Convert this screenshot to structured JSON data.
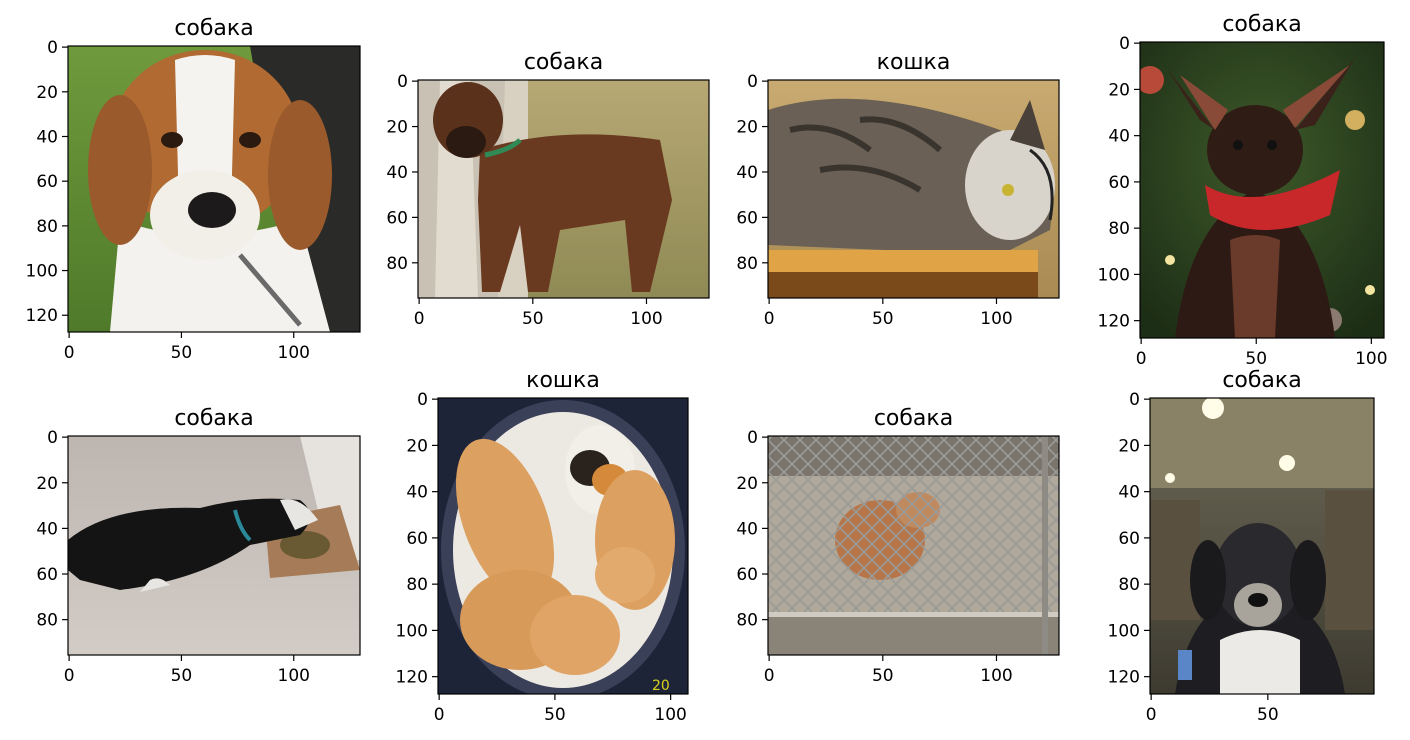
{
  "chart_data": [
    {
      "type": "image",
      "title": "собака",
      "image": "beagle",
      "width": 130,
      "height": 128,
      "xticks": [
        0,
        50,
        100
      ],
      "yticks": [
        0,
        20,
        40,
        60,
        80,
        100,
        120
      ]
    },
    {
      "type": "image",
      "title": "собака",
      "image": "boxer",
      "width": 128,
      "height": 96,
      "xticks": [
        0,
        50,
        100
      ],
      "yticks": [
        0,
        20,
        40,
        60,
        80
      ]
    },
    {
      "type": "image",
      "title": "кошка",
      "image": "tabby-cat",
      "width": 128,
      "height": 96,
      "xticks": [
        0,
        50,
        100
      ],
      "yticks": [
        0,
        20,
        40,
        60,
        80
      ]
    },
    {
      "type": "image",
      "title": "собака",
      "image": "chihuahua",
      "width": 106,
      "height": 128,
      "xticks": [
        0,
        50,
        100
      ],
      "yticks": [
        0,
        20,
        40,
        60,
        80,
        100,
        120
      ]
    },
    {
      "type": "image",
      "title": "собака",
      "image": "black-dog-lying",
      "width": 130,
      "height": 96,
      "xticks": [
        0,
        50,
        100
      ],
      "yticks": [
        0,
        20,
        40,
        60,
        80
      ]
    },
    {
      "type": "image",
      "title": "кошка",
      "image": "kittens-basket",
      "width": 108,
      "height": 128,
      "xticks": [
        0,
        50,
        100
      ],
      "yticks": [
        0,
        20,
        40,
        60,
        80,
        100,
        120
      ]
    },
    {
      "type": "image",
      "title": "собака",
      "image": "dog-behind-fence",
      "width": 128,
      "height": 96,
      "xticks": [
        0,
        50,
        100
      ],
      "yticks": [
        0,
        20,
        40,
        60,
        80
      ]
    },
    {
      "type": "image",
      "title": "собака",
      "image": "puppy-in-store",
      "width": 96,
      "height": 128,
      "xticks": [
        0,
        50
      ],
      "yticks": [
        0,
        20,
        40,
        60,
        80,
        100,
        120
      ]
    }
  ]
}
